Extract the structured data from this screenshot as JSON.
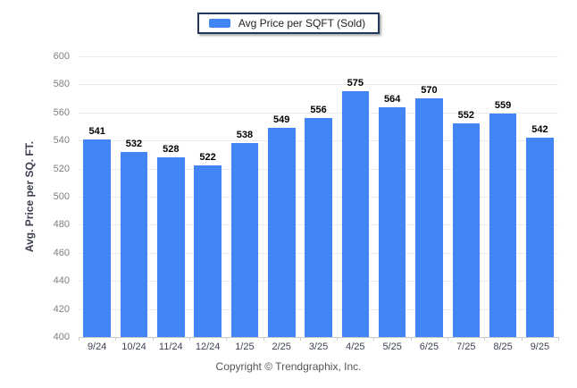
{
  "legend": {
    "label": "Avg Price per SQFT (Sold)"
  },
  "footer": {
    "copyright": "Copyright © Trendgraphix, Inc."
  },
  "chart_data": {
    "type": "bar",
    "title": "",
    "categories": [
      "9/24",
      "10/24",
      "11/24",
      "12/24",
      "1/25",
      "2/25",
      "3/25",
      "4/25",
      "5/25",
      "6/25",
      "7/25",
      "8/25",
      "9/25"
    ],
    "series": [
      {
        "name": "Avg Price per SQFT (Sold)",
        "values": [
          541,
          532,
          528,
          522,
          538,
          549,
          556,
          575,
          564,
          570,
          552,
          559,
          542
        ]
      }
    ],
    "xlabel": "",
    "ylabel": "Avg. Price per SQ. FT.",
    "ylim": [
      400,
      600
    ],
    "y_ticks": [
      400,
      420,
      440,
      460,
      480,
      500,
      520,
      540,
      560,
      580,
      600
    ],
    "grid": true,
    "legend_position": "top-center",
    "value_labels": true
  },
  "colors": {
    "bar": "#4285F4",
    "grid": "#ececec",
    "axis_line": "#c9c9c9",
    "y_tick_label": "#7f7f7f",
    "x_tick_label": "#3e4356",
    "value_label": "#000000",
    "legend_border": "#23365c"
  }
}
